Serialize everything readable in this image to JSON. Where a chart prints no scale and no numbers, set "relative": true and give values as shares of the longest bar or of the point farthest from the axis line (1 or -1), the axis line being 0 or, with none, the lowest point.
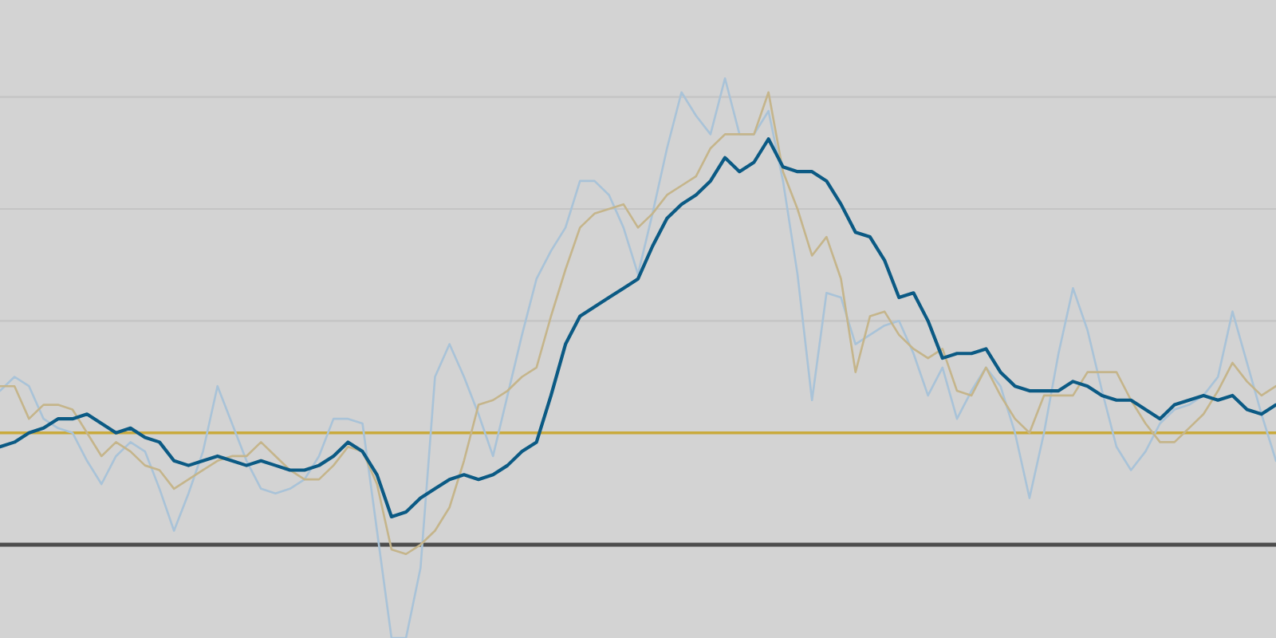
{
  "chart_data": {
    "type": "line",
    "relative": true,
    "grid": "y",
    "categories": [
      null,
      null,
      null,
      null,
      null,
      null,
      null,
      null,
      null,
      null,
      null,
      null,
      null,
      null,
      null,
      null,
      null,
      null,
      null,
      null,
      null,
      null,
      null,
      null,
      null,
      null,
      null,
      null,
      null,
      null,
      null,
      null,
      null,
      null,
      null,
      null,
      null,
      null,
      null,
      null,
      null,
      null,
      null,
      null,
      null,
      null,
      null,
      null,
      null,
      null,
      null,
      null,
      null,
      null,
      null,
      null,
      null,
      null,
      null,
      null,
      null,
      null,
      null,
      null,
      null,
      null,
      null,
      null,
      null,
      null,
      null,
      null,
      null,
      null,
      null,
      null,
      null,
      null,
      null,
      null,
      null,
      null,
      null,
      null,
      null,
      null,
      null,
      null,
      null
    ],
    "series": [
      {
        "color": "#0b5a84",
        "values": [
          0.21,
          0.22,
          0.24,
          0.25,
          0.27,
          0.27,
          0.28,
          0.26,
          0.24,
          0.25,
          0.23,
          0.22,
          0.18,
          0.17,
          0.18,
          0.19,
          0.18,
          0.17,
          0.18,
          0.17,
          0.16,
          0.16,
          0.17,
          0.19,
          0.22,
          0.2,
          0.15,
          0.06,
          0.07,
          0.1,
          0.12,
          0.14,
          0.15,
          0.14,
          0.15,
          0.17,
          0.2,
          0.22,
          0.32,
          0.43,
          0.49,
          0.51,
          0.53,
          0.55,
          0.57,
          0.64,
          0.7,
          0.73,
          0.75,
          0.78,
          0.83,
          0.8,
          0.82,
          0.87,
          0.81,
          0.8,
          0.8,
          0.78,
          0.73,
          0.67,
          0.66,
          0.61,
          0.53,
          0.54,
          0.48,
          0.4,
          0.41,
          0.41,
          0.42,
          0.37,
          0.34,
          0.33,
          0.33,
          0.33,
          0.35,
          0.34,
          0.32,
          0.31,
          0.31,
          0.29,
          0.27,
          0.3,
          0.31,
          0.32,
          0.31,
          0.32,
          0.29,
          0.28,
          0.3
        ]
      },
      {
        "color": "#c5b58b",
        "values": [
          0.34,
          0.34,
          0.27,
          0.3,
          0.3,
          0.29,
          0.24,
          0.19,
          0.22,
          0.2,
          0.17,
          0.16,
          0.12,
          0.14,
          0.16,
          0.18,
          0.19,
          0.19,
          0.22,
          0.19,
          0.16,
          0.14,
          0.14,
          0.17,
          0.21,
          0.2,
          0.13,
          -0.01,
          -0.02,
          0.0,
          0.03,
          0.08,
          0.18,
          0.3,
          0.31,
          0.33,
          0.36,
          0.38,
          0.49,
          0.59,
          0.68,
          0.71,
          0.72,
          0.73,
          0.68,
          0.71,
          0.75,
          0.77,
          0.79,
          0.85,
          0.88,
          0.88,
          0.88,
          0.97,
          0.8,
          0.72,
          0.62,
          0.66,
          0.57,
          0.37,
          0.49,
          0.5,
          0.45,
          0.42,
          0.4,
          0.42,
          0.33,
          0.32,
          0.38,
          0.32,
          0.27,
          0.24,
          0.32,
          0.32,
          0.32,
          0.37,
          0.37,
          0.37,
          0.31,
          0.26,
          0.22,
          0.22,
          0.25,
          0.28,
          0.33,
          0.39,
          0.35,
          0.32,
          0.34
        ]
      },
      {
        "color": "#a9c3d8",
        "values": [
          0.33,
          0.36,
          0.34,
          0.27,
          0.25,
          0.24,
          0.18,
          0.13,
          0.19,
          0.22,
          0.2,
          0.12,
          0.03,
          0.11,
          0.2,
          0.34,
          0.26,
          0.18,
          0.12,
          0.11,
          0.12,
          0.14,
          0.19,
          0.27,
          0.27,
          0.26,
          0.03,
          -0.2,
          -0.2,
          -0.05,
          0.36,
          0.43,
          0.36,
          0.28,
          0.19,
          0.32,
          0.45,
          0.57,
          0.63,
          0.68,
          0.78,
          0.78,
          0.75,
          0.68,
          0.58,
          0.71,
          0.85,
          0.97,
          0.92,
          0.88,
          1.0,
          0.88,
          0.88,
          0.93,
          0.78,
          0.58,
          0.31,
          0.54,
          0.53,
          0.43,
          0.45,
          0.47,
          0.48,
          0.41,
          0.32,
          0.38,
          0.27,
          0.33,
          0.38,
          0.34,
          0.24,
          0.1,
          0.24,
          0.41,
          0.55,
          0.46,
          0.33,
          0.21,
          0.16,
          0.2,
          0.26,
          0.29,
          0.3,
          0.32,
          0.36,
          0.5,
          0.39,
          0.28,
          0.18
        ]
      }
    ],
    "ref_lines": [
      {
        "axis": "y",
        "value": 0.24,
        "color": "#c9aa3c"
      }
    ]
  }
}
